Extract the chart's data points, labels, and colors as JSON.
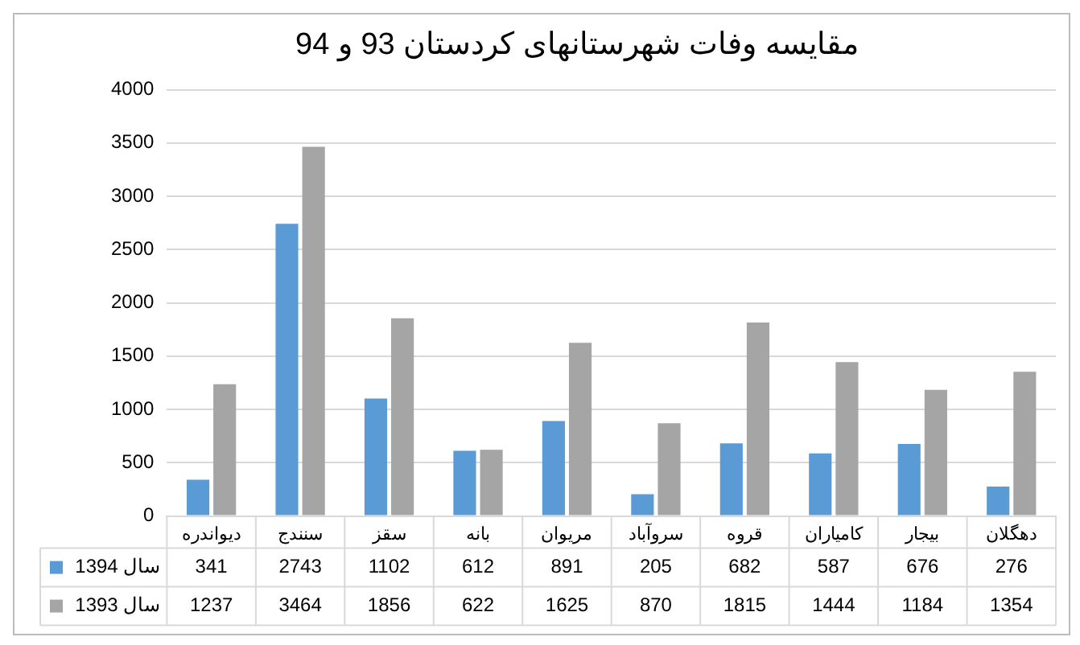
{
  "chart_data": {
    "type": "bar",
    "title": "مقایسه وفات شهرستانهای کردستان 93 و 94",
    "categories": [
      "دیواندره",
      "سنندج",
      "سقز",
      "بانه",
      "مریوان",
      "سروآباد",
      "قروه",
      "کامیاران",
      "بیجار",
      "دهگلان"
    ],
    "series": [
      {
        "name": "سال 1394",
        "color": "#5b9bd5",
        "values": [
          341,
          2743,
          1102,
          612,
          891,
          205,
          682,
          587,
          676,
          276
        ]
      },
      {
        "name": "سال 1393",
        "color": "#a5a5a5",
        "values": [
          1237,
          3464,
          1856,
          622,
          1625,
          870,
          1815,
          1444,
          1184,
          1354
        ]
      }
    ],
    "ylim": [
      0,
      4000
    ],
    "yticks": [
      0,
      500,
      1000,
      1500,
      2000,
      2500,
      3000,
      3500,
      4000
    ],
    "grid": "y",
    "legend": "bottom",
    "data_labels": true
  }
}
